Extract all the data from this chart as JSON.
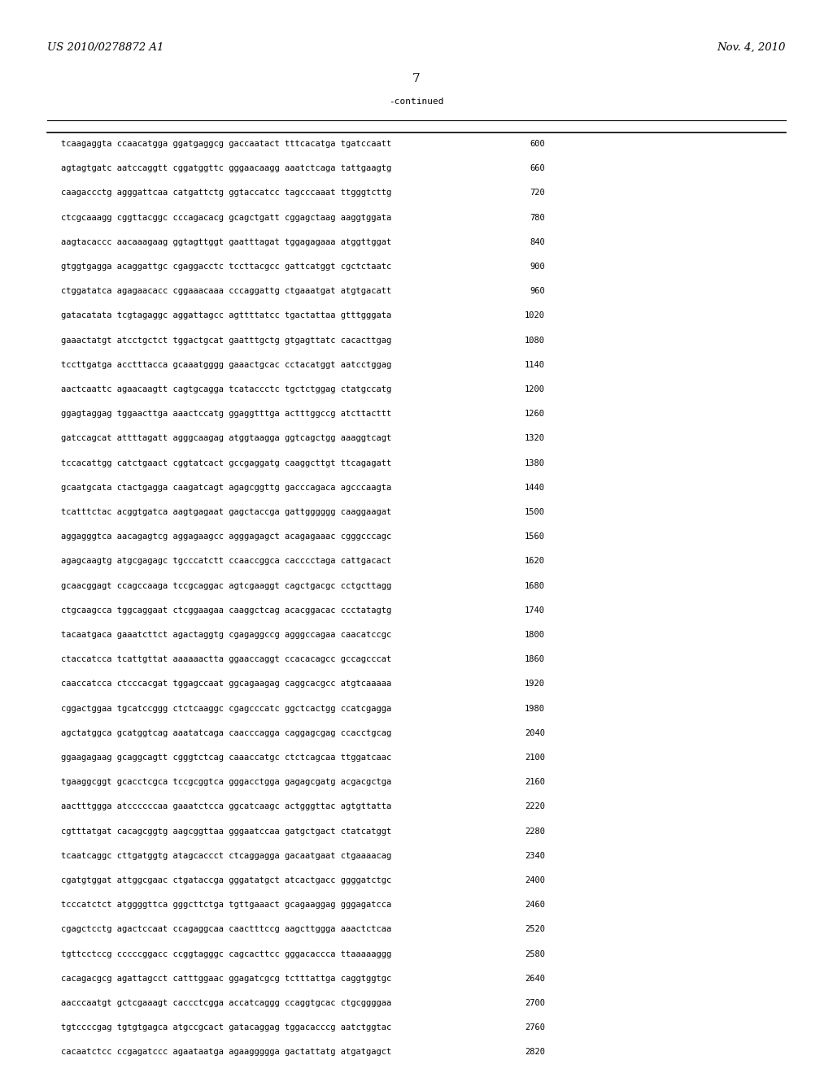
{
  "header_left": "US 2010/0278872 A1",
  "header_right": "Nov. 4, 2010",
  "page_number": "7",
  "continued_label": "-continued",
  "background_color": "#ffffff",
  "text_color": "#000000",
  "font_size": 7.5,
  "header_font_size": 9.5,
  "page_num_font_size": 11,
  "sequences": [
    [
      "tcaagaggta ccaacatgga ggatgaggcg gaccaatact tttcacatga tgatccaatt",
      "600"
    ],
    [
      "agtagtgatc aatccaggtt cggatggttc gggaacaagg aaatctcaga tattgaagtg",
      "660"
    ],
    [
      "caagaccctg agggattcaa catgattctg ggtaccatcc tagcccaaat ttgggtcttg",
      "720"
    ],
    [
      "ctcgcaaagg cggttacggc cccagacacg gcagctgatt cggagctaag aaggtggata",
      "780"
    ],
    [
      "aagtacaccc aacaaagaag ggtagttggt gaatttagat tggagagaaa atggttggat",
      "840"
    ],
    [
      "gtggtgagga acaggattgc cgaggacctc tccttacgcc gattcatggt cgctctaatc",
      "900"
    ],
    [
      "ctggatatca agagaacacc cggaaacaaa cccaggattg ctgaaatgat atgtgacatt",
      "960"
    ],
    [
      "gatacatata tcgtagaggc aggattagcc agttttatcc tgactattaa gtttgggata",
      "1020"
    ],
    [
      "gaaactatgt atcctgctct tggactgcat gaatttgctg gtgagttatc cacacttgag",
      "1080"
    ],
    [
      "tccttgatga acctttacca gcaaatgggg gaaactgcac cctacatggt aatcctggag",
      "1140"
    ],
    [
      "aactcaattc agaacaagtt cagtgcagga tcataccctc tgctctggag ctatgccatg",
      "1200"
    ],
    [
      "ggagtaggag tggaacttga aaactccatg ggaggtttga actttggccg atcttacttt",
      "1260"
    ],
    [
      "gatccagcat attttagatt agggcaagag atggtaagga ggtcagctgg aaaggtcagt",
      "1320"
    ],
    [
      "tccacattgg catctgaact cggtatcact gccgaggatg caaggcttgt ttcagagatt",
      "1380"
    ],
    [
      "gcaatgcata ctactgagga caagatcagt agagcggttg gacccagaca agcccaagta",
      "1440"
    ],
    [
      "tcatttctac acggtgatca aagtgagaat gagctaccga gattgggggg caaggaagat",
      "1500"
    ],
    [
      "aggagggtca aacagagtcg aggagaagcc agggagagct acagagaaac cgggcccagc",
      "1560"
    ],
    [
      "agagcaagtg atgcgagagc tgcccatctt ccaaccggca cacccctaga cattgacact",
      "1620"
    ],
    [
      "gcaacggagt ccagccaaga tccgcaggac agtcgaaggt cagctgacgc cctgcttagg",
      "1680"
    ],
    [
      "ctgcaagcca tggcaggaat ctcggaagaa caaggctcag acacggacac ccctatagtg",
      "1740"
    ],
    [
      "tacaatgaca gaaatcttct agactaggtg cgagaggccg agggccagaa caacatccgc",
      "1800"
    ],
    [
      "ctaccatcca tcattgttat aaaaaactta ggaaccaggt ccacacagcc gccagcccat",
      "1860"
    ],
    [
      "caaccatcca ctcccacgat tggagccaat ggcagaagag caggcacgcc atgtcaaaaa",
      "1920"
    ],
    [
      "cggactggaa tgcatccggg ctctcaaggc cgagcccatc ggctcactgg ccatcgagga",
      "1980"
    ],
    [
      "agctatggca gcatggtcag aaatatcaga caacccagga caggagcgag ccacctgcag",
      "2040"
    ],
    [
      "ggaagagaag gcaggcagtt cgggtctcag caaaccatgc ctctcagcaa ttggatcaac",
      "2100"
    ],
    [
      "tgaaggcggt gcacctcgca tccgcggtca gggacctgga gagagcgatg acgacgctga",
      "2160"
    ],
    [
      "aactttggga atccccccaa gaaatctcca ggcatcaagc actgggttac agtgttatta",
      "2220"
    ],
    [
      "cgtttatgat cacagcggtg aagcggttaa gggaatccaa gatgctgact ctatcatggt",
      "2280"
    ],
    [
      "tcaatcaggc cttgatggtg atagcaccct ctcaggagga gacaatgaat ctgaaaacag",
      "2340"
    ],
    [
      "cgatgtggat attggcgaac ctgataccga gggatatgct atcactgacc ggggatctgc",
      "2400"
    ],
    [
      "tcccatctct atggggttca gggcttctga tgttgaaact gcagaaggag gggagatcca",
      "2460"
    ],
    [
      "cgagctcctg agactccaat ccagaggcaa caactttccg aagcttggga aaactctcaa",
      "2520"
    ],
    [
      "tgttcctccg cccccggacc ccggtagggc cagcacttcc gggacaccca ttaaaaaggg",
      "2580"
    ],
    [
      "cacagacgcg agattagcct catttggaac ggagatcgcg tctttattga caggtggtgc",
      "2640"
    ],
    [
      "aacccaatgt gctcgaaagt caccctcgga accatcaggg ccaggtgcac ctgcggggaa",
      "2700"
    ],
    [
      "tgtccccgag tgtgtgagca atgccgcact gatacaggag tggacacccg aatctggtac",
      "2760"
    ],
    [
      "cacaatctcc ccgagatccc agaataatga agaaggggga gactattatg atgatgagct",
      "2820"
    ]
  ]
}
